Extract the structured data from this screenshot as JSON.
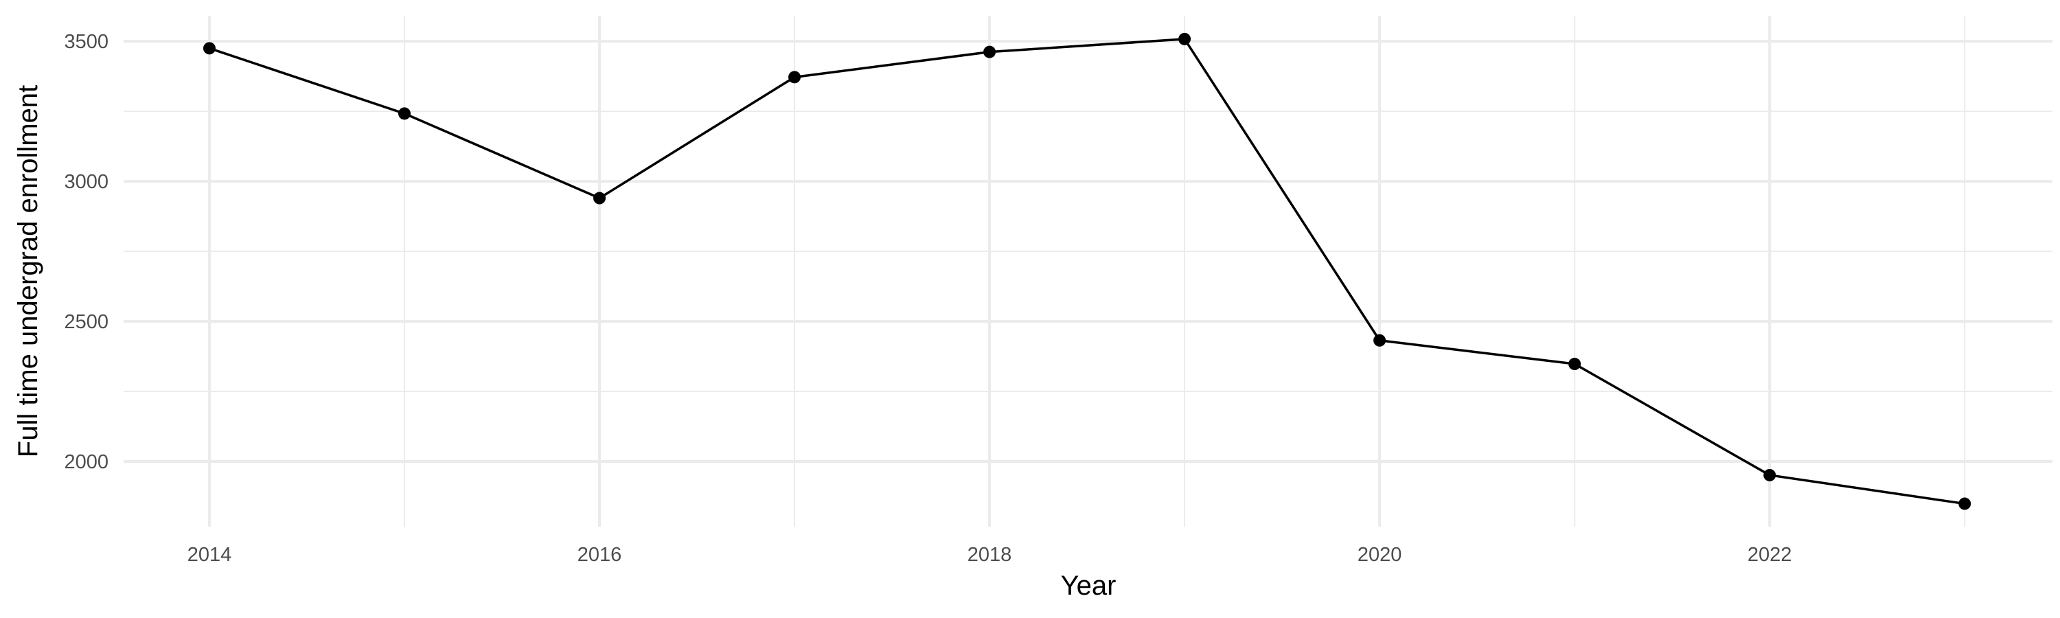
{
  "chart_data": {
    "type": "line",
    "title": "",
    "xlabel": "Year",
    "ylabel": "Full time undergrad enrollment",
    "x": [
      2014,
      2015,
      2016,
      2017,
      2018,
      2019,
      2020,
      2021,
      2022,
      2023
    ],
    "series": [
      {
        "values": [
          3475,
          3242,
          2940,
          3372,
          3462,
          3508,
          2432,
          2348,
          1951,
          1849
        ]
      }
    ],
    "xlim": [
      2013.56,
      2023.45
    ],
    "ylim": [
      1767,
      3591
    ],
    "x_ticks": [
      2014,
      2016,
      2018,
      2020,
      2022
    ],
    "x_tick_labels": [
      "2014",
      "2016",
      "2018",
      "2020",
      "2022"
    ],
    "x_minor_ticks": [
      2015,
      2017,
      2019,
      2021,
      2023
    ],
    "y_ticks": [
      2000,
      2500,
      3000,
      3500
    ],
    "y_tick_labels": [
      "2000",
      "2500",
      "3000",
      "3500"
    ],
    "y_minor_ticks": [
      2250,
      2750,
      3250
    ],
    "grid": true,
    "legend": "none",
    "colors": {
      "line": "#000000",
      "points": "#000000",
      "grid": "#ebebeb",
      "background": "#ffffff"
    }
  }
}
